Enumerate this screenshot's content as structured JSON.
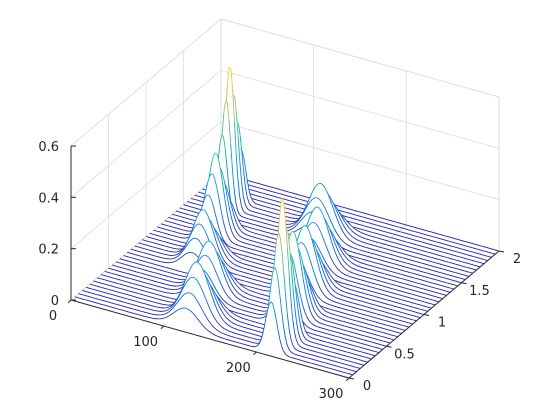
{
  "chart_data": {
    "type": "waterfall",
    "title": "",
    "xlabel": "",
    "ylabel": "",
    "zlabel": "",
    "x_ticks": [
      "0",
      "100",
      "200",
      "300"
    ],
    "y_ticks": [
      "0",
      "0.5",
      "1",
      "1.5",
      "2"
    ],
    "z_ticks": [
      "0",
      "0.2",
      "0.4",
      "0.6"
    ],
    "xlim": [
      0,
      300
    ],
    "ylim": [
      0,
      2
    ],
    "zlim": [
      0,
      0.6
    ],
    "grid": true,
    "colormap": "parula",
    "traces": {
      "count": 40,
      "y_start": 0.05,
      "y_step": 0.05,
      "x_range": [
        0,
        300
      ]
    },
    "peak_groups": [
      {
        "y_range": [
          0.05,
          0.35
        ],
        "x_center": 212,
        "sigma": 6,
        "amp_max": 0.56
      },
      {
        "y_range": [
          0.4,
          0.7
        ],
        "x_center": 195,
        "sigma": 9,
        "amp_max": 0.33
      },
      {
        "y_range": [
          0.75,
          1.05
        ],
        "x_center": 180,
        "sigma": 11,
        "amp_max": 0.25
      },
      {
        "y_range": [
          1.1,
          1.4
        ],
        "x_center": 165,
        "sigma": 12,
        "amp_max": 0.22
      },
      {
        "y_range": [
          1.45,
          1.75
        ],
        "x_center": 140,
        "sigma": 13,
        "amp_max": 0.2
      },
      {
        "y_range": [
          0.05,
          0.35
        ],
        "x_center": 120,
        "sigma": 13,
        "amp_max": 0.22
      },
      {
        "y_range": [
          0.4,
          0.7
        ],
        "x_center": 105,
        "sigma": 12,
        "amp_max": 0.2
      },
      {
        "y_range": [
          0.75,
          1.05
        ],
        "x_center": 70,
        "sigma": 11,
        "amp_max": 0.2
      },
      {
        "y_range": [
          1.1,
          1.4
        ],
        "x_center": 55,
        "sigma": 8,
        "amp_max": 0.32
      },
      {
        "y_range": [
          1.45,
          1.75
        ],
        "x_center": 42,
        "sigma": 5,
        "amp_max": 0.56
      }
    ],
    "colors": {
      "axis": "#262626",
      "grid": "#dcdcdc",
      "trace": "#1c1cb4",
      "colormap_stops": [
        "#352a87",
        "#0363e1",
        "#1485d4",
        "#06a7c6",
        "#38b99e",
        "#92bf73",
        "#d9ba56",
        "#fcce2e",
        "#f9fb0e"
      ]
    }
  }
}
